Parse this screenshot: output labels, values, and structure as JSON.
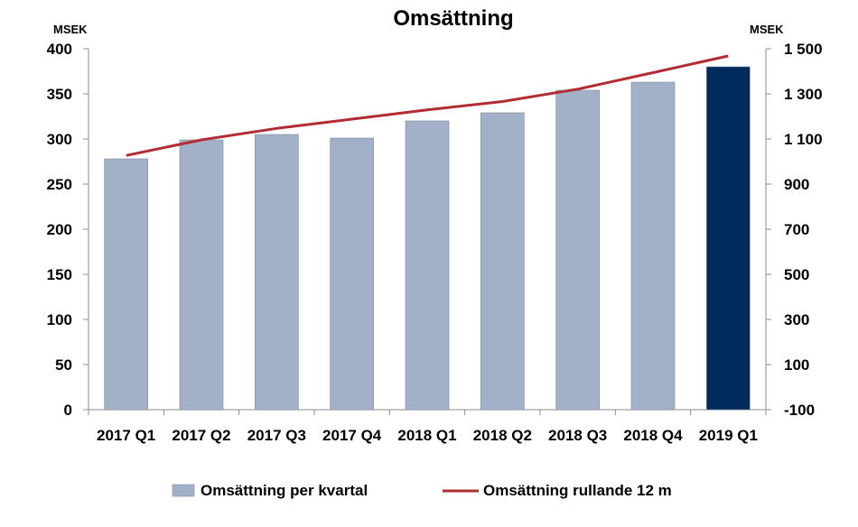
{
  "chart_data": {
    "type": "bar",
    "title": "Omsättning",
    "y_left_unit": "MSEK",
    "y_right_unit": "MSEK",
    "categories": [
      "2017 Q1",
      "2017 Q2",
      "2017 Q3",
      "2017 Q4",
      "2018 Q1",
      "2018 Q2",
      "2018 Q3",
      "2018 Q4",
      "2019 Q1"
    ],
    "y_left": {
      "min": 0,
      "max": 400,
      "ticks": [
        0,
        50,
        100,
        150,
        200,
        250,
        300,
        350,
        400
      ],
      "tick_labels": [
        "0",
        "50",
        "100",
        "150",
        "200",
        "250",
        "300",
        "350",
        "400"
      ]
    },
    "y_right": {
      "min": -100,
      "max": 1500,
      "ticks": [
        -100,
        100,
        300,
        500,
        700,
        900,
        1100,
        1300,
        1500
      ],
      "tick_labels": [
        "-100",
        "100",
        "300",
        "500",
        "700",
        "900",
        "1 100",
        "1 300",
        "1 500"
      ]
    },
    "series": [
      {
        "name": "Omsättning per kvartal",
        "kind": "bar",
        "axis": "left",
        "color": "#a2b1c7",
        "highlight_color": "#002a5c",
        "highlight_index": 8,
        "values": [
          278,
          299,
          305,
          301,
          320,
          329,
          354,
          363,
          380
        ]
      },
      {
        "name": "Omsättning rullande 12 m",
        "kind": "line",
        "axis": "right",
        "color": "#b22c33",
        "values": [
          1027,
          1096,
          1147,
          1188,
          1229,
          1266,
          1321,
          1394,
          1468
        ]
      }
    ],
    "legend_position": "bottom",
    "grid": false
  }
}
